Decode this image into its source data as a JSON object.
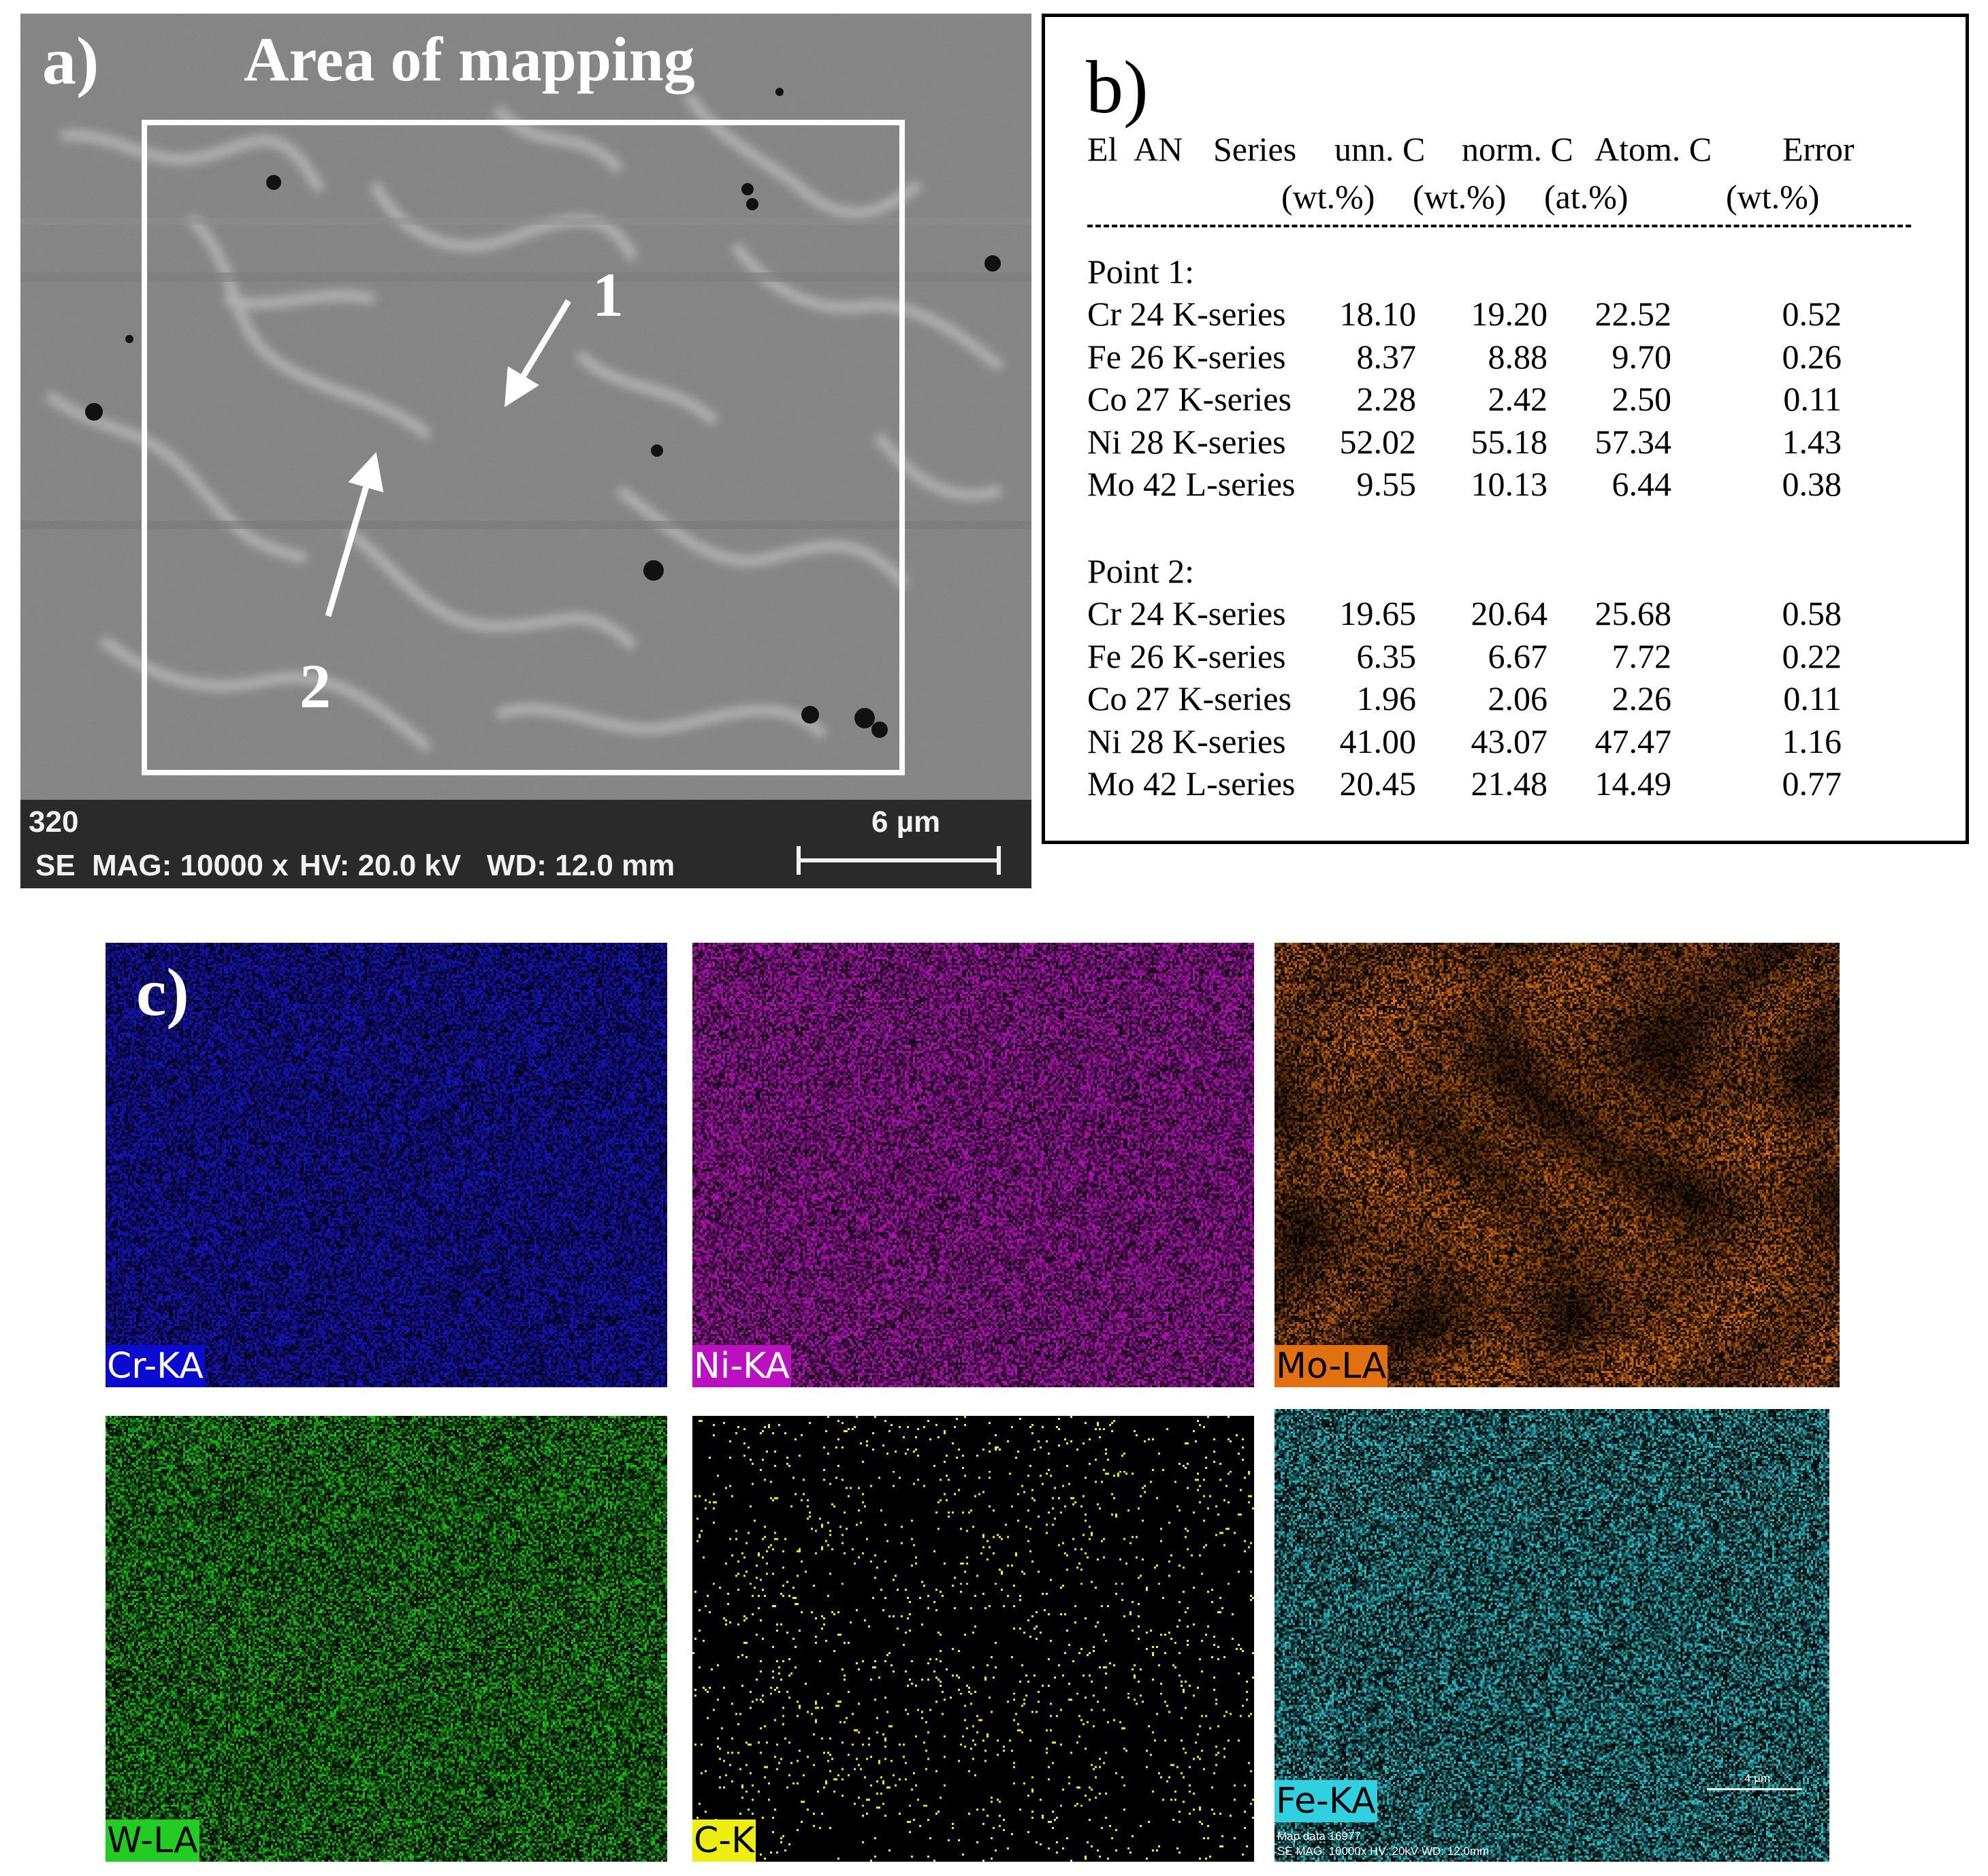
{
  "panel_a": {
    "label": "a)",
    "title": "Area of mapping",
    "point_1": "1",
    "point_2": "2",
    "infobar": {
      "id": "320",
      "scale_label": "6 µm",
      "detector": "SE",
      "mag": "MAG: 10000 x",
      "hv": "HV: 20.0 kV",
      "wd": "WD: 12.0 mm"
    }
  },
  "panel_b": {
    "label": "b)",
    "headers": [
      "El",
      "AN",
      "Series",
      "unn. C",
      "norm. C",
      "Atom. C",
      "Error"
    ],
    "units": [
      "(wt.%)",
      "(wt.%)",
      "(at.%)",
      "(wt.%)"
    ],
    "point1": {
      "title": "Point 1:",
      "rows": [
        {
          "el": "Cr 24 K-series",
          "unn": "18.10",
          "norm": "19.20",
          "atom": "22.52",
          "err": "0.52"
        },
        {
          "el": "Fe 26 K-series",
          "unn": "8.37",
          "norm": "8.88",
          "atom": "9.70",
          "err": "0.26"
        },
        {
          "el": "Co 27 K-series",
          "unn": "2.28",
          "norm": "2.42",
          "atom": "2.50",
          "err": "0.11"
        },
        {
          "el": "Ni 28 K-series",
          "unn": "52.02",
          "norm": "55.18",
          "atom": "57.34",
          "err": "1.43"
        },
        {
          "el": "Mo 42 L-series",
          "unn": "9.55",
          "norm": "10.13",
          "atom": "6.44",
          "err": "0.38"
        }
      ]
    },
    "point2": {
      "title": "Point 2:",
      "rows": [
        {
          "el": "Cr 24 K-series",
          "unn": "19.65",
          "norm": "20.64",
          "atom": "25.68",
          "err": "0.58"
        },
        {
          "el": "Fe 26 K-series",
          "unn": "6.35",
          "norm": "6.67",
          "atom": "7.72",
          "err": "0.22"
        },
        {
          "el": "Co 27 K-series",
          "unn": "1.96",
          "norm": "2.06",
          "atom": "2.26",
          "err": "0.11"
        },
        {
          "el": "Ni 28 K-series",
          "unn": "41.00",
          "norm": "43.07",
          "atom": "47.47",
          "err": "1.16"
        },
        {
          "el": "Mo 42 L-series",
          "unn": "20.45",
          "norm": "21.48",
          "atom": "14.49",
          "err": "0.77"
        }
      ]
    }
  },
  "panel_c": {
    "label": "c)",
    "maps": [
      {
        "label": "Cr-KA",
        "color": "#1a1ae6",
        "label_bg": "#0b0bd0",
        "label_fg": "#ffffff",
        "style": "dense"
      },
      {
        "label": "Ni-KA",
        "color": "#d21ad8",
        "label_bg": "#bb10bf",
        "label_fg": "#ffffff",
        "style": "dense"
      },
      {
        "label": "Mo-LA",
        "color": "#f07818",
        "label_bg": "#e07010",
        "label_fg": "#000000",
        "style": "network"
      },
      {
        "label": "W-LA",
        "color": "#22d21e",
        "label_bg": "#22cc22",
        "label_fg": "#000000",
        "style": "medium"
      },
      {
        "label": "C-K",
        "color": "#f4f020",
        "label_bg": "#eeee10",
        "label_fg": "#000000",
        "style": "sparse"
      },
      {
        "label": "Fe-KA",
        "color": "#36d6e0",
        "label_bg": "#30d0e0",
        "label_fg": "#000000",
        "style": "medium"
      }
    ],
    "fe_info": {
      "line1": "Map data 16977",
      "line2": "SE  MAG: 10000x  HV: 20kV  WD: 12.0mm",
      "scale": "4 µm"
    }
  }
}
